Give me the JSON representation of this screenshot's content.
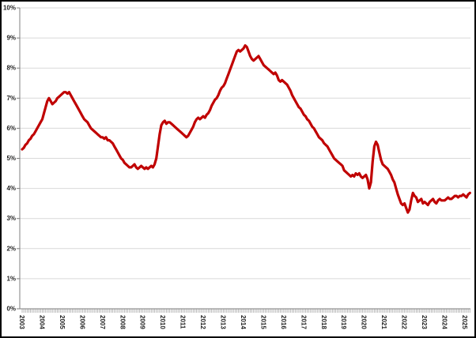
{
  "page": {
    "background_color": "#ffffff",
    "outer_border_color": "#000000"
  },
  "chart_data": {
    "type": "line",
    "title": "",
    "legend": "none",
    "grid": {
      "horizontal": true,
      "vertical": false
    },
    "colors": {
      "line": "#c00000",
      "gridline": "#d9d9d9",
      "axis": "#7f7f7f",
      "minor_tick": "#a6a6a6",
      "label_text": "#1f1f1f"
    },
    "y_axis": {
      "min": 0,
      "max": 10,
      "tick_step": 1,
      "unit": "%",
      "tick_labels": [
        "0%",
        "1%",
        "2%",
        "3%",
        "4%",
        "5%",
        "6%",
        "7%",
        "8%",
        "9%",
        "10%"
      ]
    },
    "x_axis": {
      "tick_labels": [
        "2003",
        "2004",
        "2005",
        "2006",
        "2007",
        "2008",
        "2009",
        "2010",
        "2011",
        "2012",
        "2013",
        "2014",
        "2015",
        "2016",
        "2017",
        "2018",
        "2019",
        "2020",
        "2021",
        "2022",
        "2023",
        "2024",
        "2025"
      ],
      "label_rotation_deg": 90,
      "minor_tick_unit": "month"
    },
    "series": [
      {
        "name": "series-1",
        "color": "#c00000",
        "points_per_year": 12,
        "start_year": 2003,
        "values": [
          5.3,
          5.35,
          5.45,
          5.5,
          5.6,
          5.65,
          5.75,
          5.8,
          5.9,
          6.0,
          6.1,
          6.2,
          6.3,
          6.5,
          6.7,
          6.9,
          7.0,
          6.9,
          6.8,
          6.85,
          6.9,
          7.0,
          7.05,
          7.1,
          7.15,
          7.2,
          7.2,
          7.15,
          7.2,
          7.1,
          7.0,
          6.9,
          6.8,
          6.7,
          6.6,
          6.5,
          6.4,
          6.3,
          6.25,
          6.2,
          6.1,
          6.0,
          5.95,
          5.9,
          5.85,
          5.8,
          5.75,
          5.7,
          5.7,
          5.65,
          5.7,
          5.6,
          5.6,
          5.55,
          5.5,
          5.4,
          5.3,
          5.2,
          5.1,
          5.0,
          4.95,
          4.85,
          4.8,
          4.75,
          4.7,
          4.7,
          4.75,
          4.8,
          4.7,
          4.65,
          4.7,
          4.75,
          4.7,
          4.65,
          4.7,
          4.65,
          4.7,
          4.75,
          4.7,
          4.8,
          5.0,
          5.4,
          5.8,
          6.1,
          6.2,
          6.25,
          6.15,
          6.2,
          6.2,
          6.15,
          6.1,
          6.05,
          6.0,
          5.95,
          5.9,
          5.85,
          5.8,
          5.75,
          5.7,
          5.75,
          5.85,
          5.95,
          6.05,
          6.2,
          6.3,
          6.35,
          6.3,
          6.35,
          6.4,
          6.35,
          6.45,
          6.5,
          6.6,
          6.75,
          6.85,
          6.95,
          7.0,
          7.1,
          7.25,
          7.35,
          7.4,
          7.5,
          7.65,
          7.8,
          7.95,
          8.1,
          8.25,
          8.4,
          8.55,
          8.6,
          8.55,
          8.6,
          8.65,
          8.75,
          8.7,
          8.55,
          8.4,
          8.3,
          8.25,
          8.3,
          8.35,
          8.4,
          8.3,
          8.2,
          8.1,
          8.05,
          8.0,
          7.95,
          7.9,
          7.85,
          7.8,
          7.85,
          7.75,
          7.6,
          7.55,
          7.6,
          7.55,
          7.5,
          7.45,
          7.35,
          7.25,
          7.1,
          7.0,
          6.9,
          6.8,
          6.7,
          6.65,
          6.55,
          6.45,
          6.4,
          6.3,
          6.25,
          6.15,
          6.05,
          6.0,
          5.9,
          5.8,
          5.7,
          5.65,
          5.6,
          5.5,
          5.45,
          5.4,
          5.3,
          5.2,
          5.1,
          5.0,
          4.95,
          4.9,
          4.85,
          4.8,
          4.75,
          4.6,
          4.55,
          4.5,
          4.45,
          4.4,
          4.45,
          4.4,
          4.5,
          4.45,
          4.5,
          4.4,
          4.35,
          4.4,
          4.45,
          4.3,
          4.0,
          4.2,
          4.9,
          5.4,
          5.55,
          5.45,
          5.2,
          4.95,
          4.8,
          4.75,
          4.7,
          4.65,
          4.55,
          4.45,
          4.3,
          4.2,
          4.0,
          3.8,
          3.65,
          3.5,
          3.45,
          3.5,
          3.35,
          3.2,
          3.3,
          3.6,
          3.85,
          3.75,
          3.7,
          3.55,
          3.6,
          3.65,
          3.5,
          3.55,
          3.5,
          3.45,
          3.55,
          3.6,
          3.65,
          3.55,
          3.5,
          3.6,
          3.65,
          3.6,
          3.6,
          3.6,
          3.65,
          3.7,
          3.65,
          3.65,
          3.7,
          3.75,
          3.75,
          3.7,
          3.75,
          3.75,
          3.8,
          3.75,
          3.7,
          3.8,
          3.85
        ]
      }
    ]
  }
}
